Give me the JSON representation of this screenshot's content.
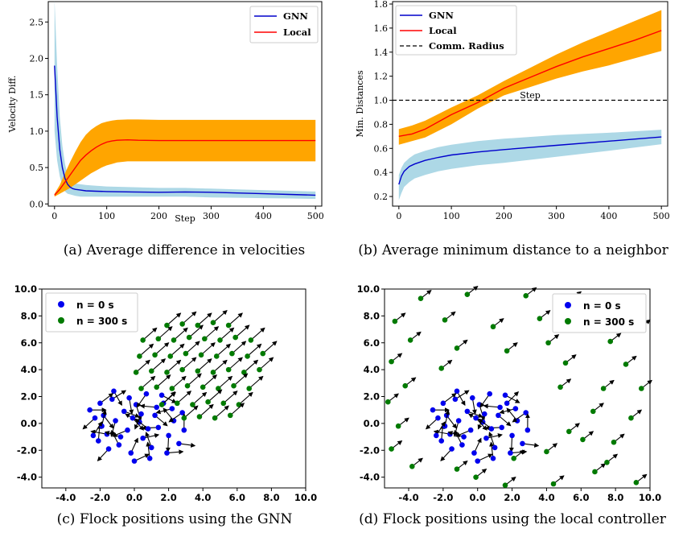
{
  "chart_data": [
    {
      "type": "line",
      "xlabel": "Step",
      "ylabel": "Velocity Diff.",
      "xlim": [
        -12,
        512
      ],
      "ylim": [
        -0.03,
        2.78
      ],
      "xticks": [
        0,
        100,
        200,
        300,
        400,
        500
      ],
      "yticks": [
        0.0,
        0.5,
        1.0,
        1.5,
        2.0,
        2.5
      ],
      "legend_position": "top-right",
      "caption": "(a) Average difference in velocities",
      "series": [
        {
          "name": "GNN",
          "color": "#0000cc",
          "band_color": "#add8e6",
          "x": [
            0,
            5,
            10,
            15,
            20,
            25,
            30,
            35,
            40,
            50,
            60,
            80,
            100,
            150,
            200,
            250,
            300,
            350,
            400,
            450,
            500
          ],
          "y": [
            1.9,
            1.2,
            0.75,
            0.5,
            0.35,
            0.27,
            0.23,
            0.21,
            0.2,
            0.19,
            0.18,
            0.175,
            0.17,
            0.165,
            0.16,
            0.165,
            0.16,
            0.15,
            0.14,
            0.13,
            0.12
          ],
          "lower": [
            1.0,
            0.6,
            0.38,
            0.25,
            0.17,
            0.14,
            0.13,
            0.12,
            0.11,
            0.1,
            0.1,
            0.1,
            0.1,
            0.1,
            0.1,
            0.1,
            0.09,
            0.085,
            0.08,
            0.075,
            0.07
          ],
          "upper": [
            2.8,
            1.9,
            1.2,
            0.8,
            0.55,
            0.4,
            0.33,
            0.3,
            0.28,
            0.27,
            0.26,
            0.25,
            0.24,
            0.23,
            0.22,
            0.22,
            0.21,
            0.2,
            0.19,
            0.18,
            0.17
          ]
        },
        {
          "name": "Local",
          "color": "#ff0000",
          "band_color": "#ffa500",
          "x": [
            0,
            10,
            20,
            30,
            40,
            50,
            60,
            70,
            80,
            90,
            100,
            110,
            120,
            140,
            160,
            200,
            300,
            400,
            500
          ],
          "y": [
            0.12,
            0.2,
            0.3,
            0.4,
            0.5,
            0.6,
            0.67,
            0.73,
            0.78,
            0.82,
            0.85,
            0.865,
            0.875,
            0.88,
            0.875,
            0.87,
            0.87,
            0.87,
            0.87
          ],
          "lower": [
            0.1,
            0.14,
            0.18,
            0.22,
            0.27,
            0.32,
            0.37,
            0.42,
            0.46,
            0.5,
            0.53,
            0.55,
            0.57,
            0.585,
            0.585,
            0.585,
            0.585,
            0.585,
            0.585
          ],
          "upper": [
            0.14,
            0.26,
            0.42,
            0.58,
            0.72,
            0.85,
            0.95,
            1.02,
            1.07,
            1.11,
            1.13,
            1.145,
            1.155,
            1.16,
            1.16,
            1.155,
            1.155,
            1.155,
            1.155
          ]
        }
      ]
    },
    {
      "type": "line",
      "xlabel": "Step",
      "ylabel": "Min. Distances",
      "xlim": [
        -12,
        512
      ],
      "ylim": [
        0.12,
        1.82
      ],
      "xticks": [
        0,
        100,
        200,
        300,
        400,
        500
      ],
      "yticks": [
        0.2,
        0.4,
        0.6,
        0.8,
        1.0,
        1.2,
        1.4,
        1.6,
        1.8
      ],
      "legend_position": "top-left",
      "caption": "(b) Average minimum distance to a neighbor",
      "hline": {
        "name": "Comm. Radius",
        "y": 1.0,
        "color": "#000000"
      },
      "series": [
        {
          "name": "GNN",
          "color": "#0000cc",
          "band_color": "#add8e6",
          "x": [
            0,
            5,
            10,
            20,
            30,
            50,
            75,
            100,
            150,
            200,
            300,
            400,
            500
          ],
          "y": [
            0.3,
            0.37,
            0.41,
            0.45,
            0.47,
            0.5,
            0.525,
            0.545,
            0.57,
            0.59,
            0.625,
            0.66,
            0.695
          ],
          "lower": [
            0.17,
            0.23,
            0.28,
            0.32,
            0.35,
            0.38,
            0.41,
            0.43,
            0.46,
            0.48,
            0.53,
            0.58,
            0.635
          ],
          "upper": [
            0.38,
            0.44,
            0.48,
            0.52,
            0.55,
            0.58,
            0.61,
            0.63,
            0.66,
            0.68,
            0.71,
            0.73,
            0.755
          ]
        },
        {
          "name": "Local",
          "color": "#ff0000",
          "band_color": "#ffa500",
          "x": [
            0,
            25,
            50,
            100,
            150,
            200,
            250,
            300,
            350,
            400,
            450,
            500
          ],
          "y": [
            0.7,
            0.72,
            0.76,
            0.88,
            0.98,
            1.1,
            1.19,
            1.28,
            1.36,
            1.43,
            1.5,
            1.58
          ],
          "lower": [
            0.63,
            0.66,
            0.69,
            0.8,
            0.93,
            1.04,
            1.11,
            1.18,
            1.24,
            1.29,
            1.35,
            1.41
          ],
          "upper": [
            0.76,
            0.79,
            0.83,
            0.94,
            1.04,
            1.16,
            1.27,
            1.38,
            1.48,
            1.57,
            1.66,
            1.75
          ]
        }
      ]
    },
    {
      "type": "scatter",
      "xlim": [
        -5.4,
        10.0
      ],
      "ylim": [
        -4.8,
        10.0
      ],
      "xticks": [
        -4.0,
        -2.0,
        0.0,
        2.0,
        4.0,
        6.0,
        8.0,
        10.0
      ],
      "yticks": [
        -4.0,
        -2.0,
        0.0,
        2.0,
        4.0,
        6.0,
        8.0,
        10.0
      ],
      "legend_position": "top-left",
      "caption": "(c) Flock positions using the GNN",
      "series": [
        {
          "name": "n = 0 s",
          "color": "#0000ee",
          "points": [
            [
              -2.6,
              1.0
            ],
            [
              -2.3,
              0.4
            ],
            [
              -2.1,
              -1.3
            ],
            [
              -1.8,
              0.6
            ],
            [
              -1.6,
              -0.8
            ],
            [
              -1.3,
              1.8
            ],
            [
              -1.1,
              0.2
            ],
            [
              -0.9,
              -1.6
            ],
            [
              -0.6,
              0.9
            ],
            [
              -0.4,
              -0.5
            ],
            [
              -0.2,
              -2.2
            ],
            [
              0.1,
              1.4
            ],
            [
              0.3,
              0.1
            ],
            [
              0.5,
              -1.1
            ],
            [
              0.7,
              2.2
            ],
            [
              0.9,
              -2.6
            ],
            [
              1.2,
              0.6
            ],
            [
              1.4,
              -0.3
            ],
            [
              1.7,
              1.5
            ],
            [
              2.0,
              -0.9
            ],
            [
              2.3,
              0.2
            ],
            [
              2.6,
              -1.5
            ],
            [
              2.8,
              0.8
            ],
            [
              -1.9,
              -0.2
            ],
            [
              -1.2,
              2.4
            ],
            [
              -0.8,
              -1.0
            ],
            [
              0.0,
              -2.8
            ],
            [
              0.4,
              0.7
            ],
            [
              1.0,
              -1.8
            ],
            [
              1.6,
              2.1
            ],
            [
              2.2,
              1.1
            ],
            [
              -2.4,
              -0.9
            ],
            [
              -0.3,
              1.9
            ],
            [
              0.8,
              -0.4
            ],
            [
              1.9,
              -2.2
            ],
            [
              -1.5,
              -1.9
            ],
            [
              2.9,
              -0.5
            ],
            [
              -0.1,
              0.4
            ],
            [
              1.3,
              1.2
            ],
            [
              -2.0,
              1.5
            ]
          ]
        },
        {
          "name": "n = 300 s",
          "color": "#007a00",
          "points": [
            [
              0.5,
              6.2
            ],
            [
              1.4,
              6.3
            ],
            [
              2.3,
              6.2
            ],
            [
              3.2,
              6.4
            ],
            [
              4.1,
              6.3
            ],
            [
              5.0,
              6.2
            ],
            [
              5.9,
              6.4
            ],
            [
              6.8,
              6.2
            ],
            [
              0.3,
              5.0
            ],
            [
              1.2,
              5.1
            ],
            [
              2.1,
              5.0
            ],
            [
              3.0,
              5.2
            ],
            [
              3.9,
              5.1
            ],
            [
              4.8,
              5.0
            ],
            [
              5.7,
              5.2
            ],
            [
              6.6,
              5.0
            ],
            [
              7.5,
              5.2
            ],
            [
              0.1,
              3.8
            ],
            [
              1.0,
              3.9
            ],
            [
              1.9,
              3.8
            ],
            [
              2.8,
              4.0
            ],
            [
              3.7,
              3.9
            ],
            [
              4.6,
              3.8
            ],
            [
              5.5,
              4.0
            ],
            [
              6.4,
              3.8
            ],
            [
              7.3,
              4.0
            ],
            [
              0.4,
              2.6
            ],
            [
              1.3,
              2.7
            ],
            [
              2.2,
              2.6
            ],
            [
              3.1,
              2.8
            ],
            [
              4.0,
              2.7
            ],
            [
              4.9,
              2.6
            ],
            [
              5.8,
              2.8
            ],
            [
              6.7,
              2.6
            ],
            [
              1.6,
              1.4
            ],
            [
              2.5,
              1.5
            ],
            [
              3.4,
              1.4
            ],
            [
              4.3,
              1.6
            ],
            [
              5.2,
              1.5
            ],
            [
              6.1,
              1.4
            ],
            [
              2.9,
              0.4
            ],
            [
              3.8,
              0.5
            ],
            [
              4.7,
              0.4
            ],
            [
              5.6,
              0.6
            ],
            [
              1.9,
              7.3
            ],
            [
              2.8,
              7.4
            ],
            [
              3.7,
              7.3
            ],
            [
              4.6,
              7.5
            ],
            [
              5.5,
              7.3
            ]
          ]
        }
      ],
      "arrows": {
        "dx": 0.8,
        "dy": 0.9
      }
    },
    {
      "type": "scatter",
      "xlim": [
        -5.4,
        10.0
      ],
      "ylim": [
        -4.8,
        10.0
      ],
      "xticks": [
        -4.0,
        -2.0,
        0.0,
        2.0,
        4.0,
        6.0,
        8.0,
        10.0
      ],
      "yticks": [
        -4.0,
        -2.0,
        0.0,
        2.0,
        4.0,
        6.0,
        8.0,
        10.0
      ],
      "legend_position": "top-right",
      "caption": "(d) Flock positions using the local controller",
      "series": [
        {
          "name": "n = 0 s",
          "color": "#0000ee",
          "points": [
            [
              -2.6,
              1.0
            ],
            [
              -2.3,
              0.4
            ],
            [
              -2.1,
              -1.3
            ],
            [
              -1.8,
              0.6
            ],
            [
              -1.6,
              -0.8
            ],
            [
              -1.3,
              1.8
            ],
            [
              -1.1,
              0.2
            ],
            [
              -0.9,
              -1.6
            ],
            [
              -0.6,
              0.9
            ],
            [
              -0.4,
              -0.5
            ],
            [
              -0.2,
              -2.2
            ],
            [
              0.1,
              1.4
            ],
            [
              0.3,
              0.1
            ],
            [
              0.5,
              -1.1
            ],
            [
              0.7,
              2.2
            ],
            [
              0.9,
              -2.6
            ],
            [
              1.2,
              0.6
            ],
            [
              1.4,
              -0.3
            ],
            [
              1.7,
              1.5
            ],
            [
              2.0,
              -0.9
            ],
            [
              2.3,
              0.2
            ],
            [
              2.6,
              -1.5
            ],
            [
              2.8,
              0.8
            ],
            [
              -1.9,
              -0.2
            ],
            [
              -1.2,
              2.4
            ],
            [
              -0.8,
              -1.0
            ],
            [
              0.0,
              -2.8
            ],
            [
              0.4,
              0.7
            ],
            [
              1.0,
              -1.8
            ],
            [
              1.6,
              2.1
            ],
            [
              2.2,
              1.1
            ],
            [
              -2.4,
              -0.9
            ],
            [
              -0.3,
              1.9
            ],
            [
              0.8,
              -0.4
            ],
            [
              1.9,
              -2.2
            ],
            [
              -1.5,
              -1.9
            ],
            [
              2.9,
              -0.5
            ],
            [
              -0.1,
              0.4
            ],
            [
              1.3,
              1.2
            ],
            [
              -2.0,
              1.5
            ]
          ]
        },
        {
          "name": "n = 300 s",
          "color": "#007a00",
          "points": [
            [
              -3.3,
              9.3
            ],
            [
              -0.6,
              9.6
            ],
            [
              2.8,
              9.5
            ],
            [
              -4.8,
              7.6
            ],
            [
              -1.9,
              7.7
            ],
            [
              0.9,
              7.2
            ],
            [
              3.6,
              7.8
            ],
            [
              6.6,
              7.9
            ],
            [
              9.4,
              7.1
            ],
            [
              -3.9,
              6.2
            ],
            [
              -1.2,
              5.6
            ],
            [
              1.7,
              5.4
            ],
            [
              4.1,
              6.0
            ],
            [
              7.7,
              6.1
            ],
            [
              -5.0,
              4.6
            ],
            [
              -2.1,
              4.1
            ],
            [
              5.1,
              4.5
            ],
            [
              8.6,
              4.4
            ],
            [
              -4.2,
              2.8
            ],
            [
              4.8,
              2.7
            ],
            [
              7.3,
              2.6
            ],
            [
              9.5,
              2.6
            ],
            [
              -5.2,
              1.6
            ],
            [
              6.7,
              0.9
            ],
            [
              8.9,
              0.4
            ],
            [
              -4.6,
              -0.2
            ],
            [
              5.3,
              -0.6
            ],
            [
              7.9,
              -1.4
            ],
            [
              -5.0,
              -1.9
            ],
            [
              6.1,
              -1.2
            ],
            [
              -3.8,
              -3.2
            ],
            [
              2.1,
              -2.6
            ],
            [
              4.0,
              -2.1
            ],
            [
              6.8,
              -3.6
            ],
            [
              9.2,
              -4.4
            ],
            [
              -1.2,
              -3.4
            ],
            [
              1.6,
              -4.6
            ],
            [
              4.4,
              -4.5
            ],
            [
              7.5,
              -2.9
            ],
            [
              -0.1,
              -4.0
            ],
            [
              5.4,
              9.2
            ]
          ]
        }
      ],
      "arrows": {
        "dx": 0.6,
        "dy": 0.6
      }
    }
  ]
}
